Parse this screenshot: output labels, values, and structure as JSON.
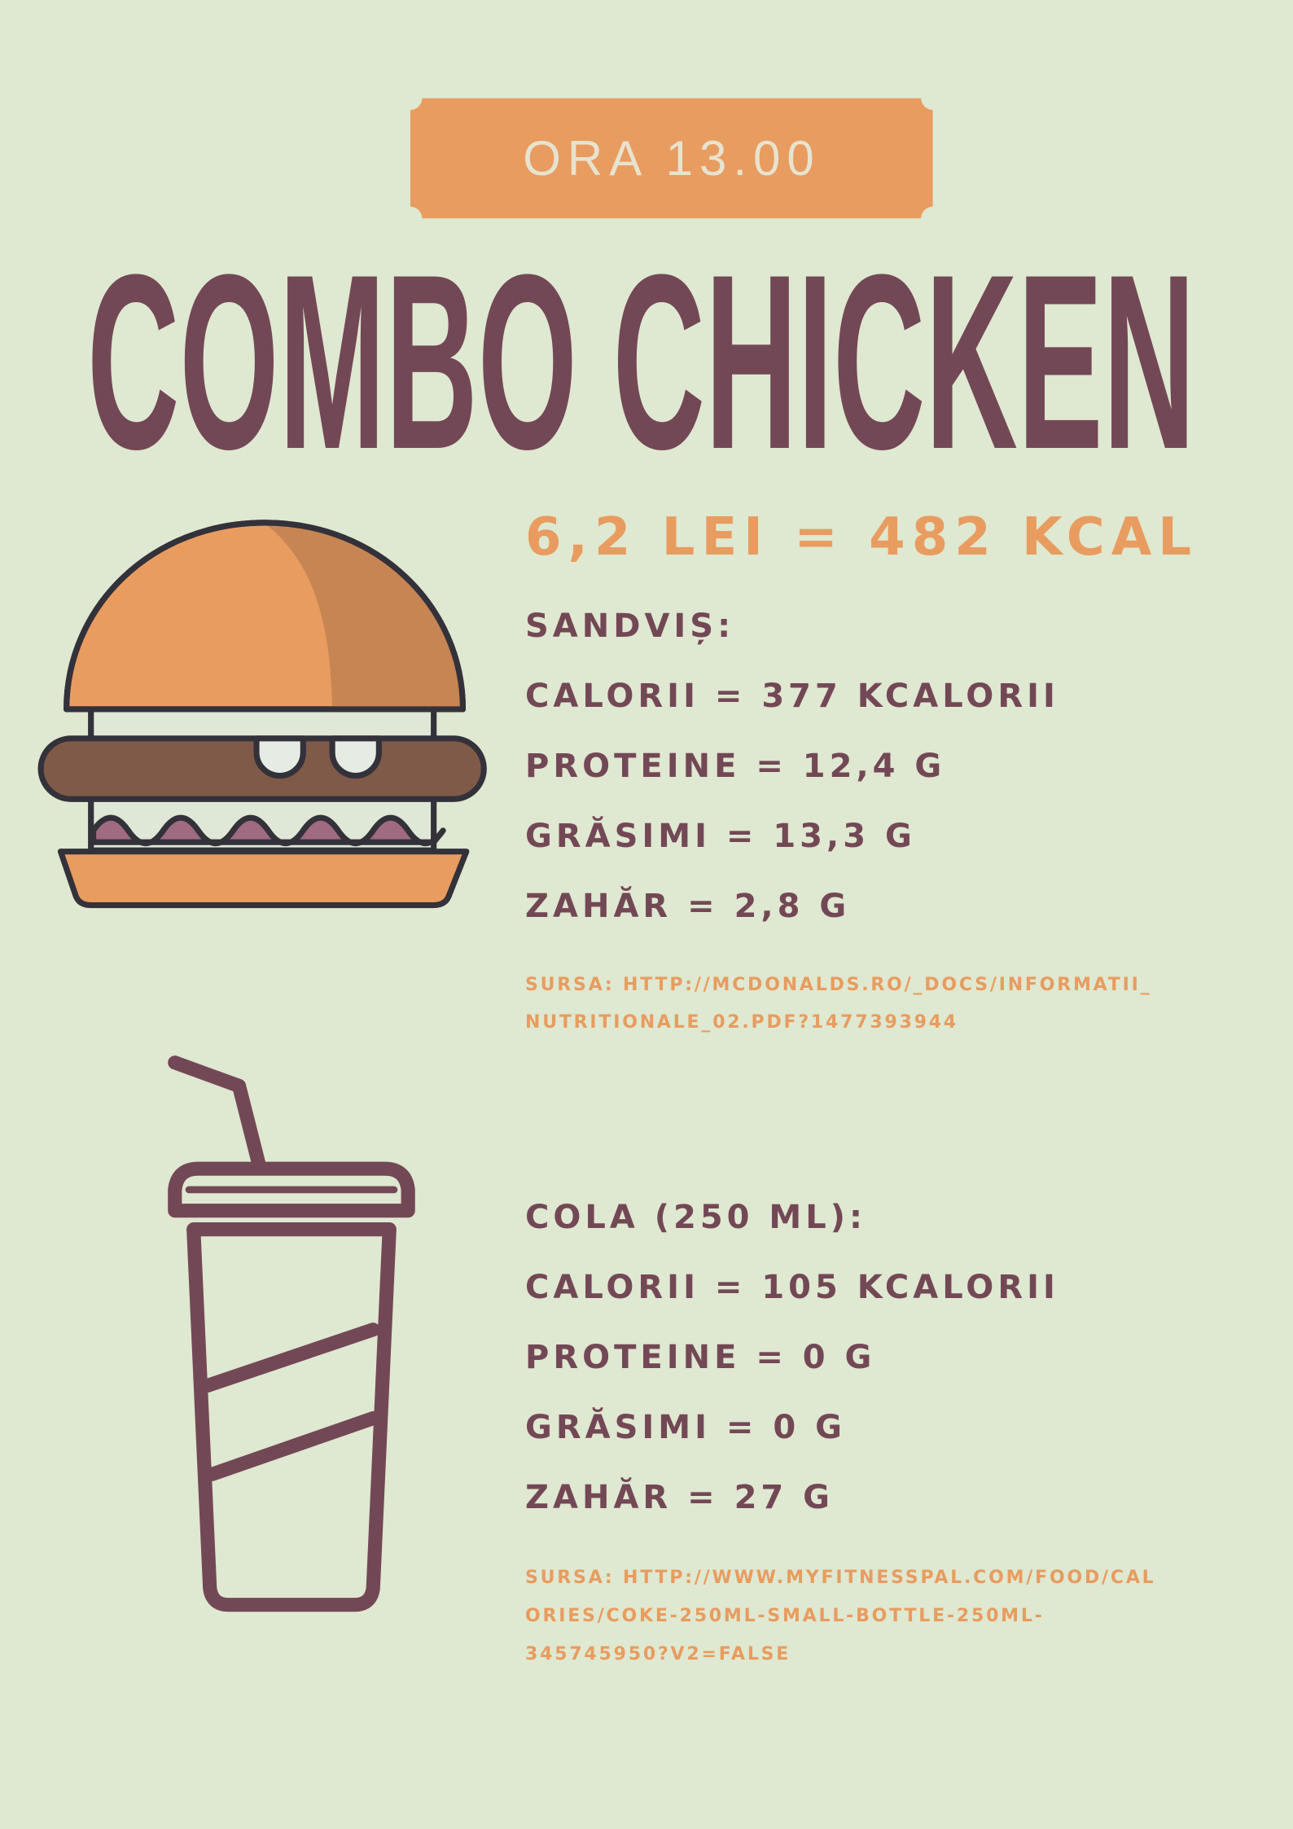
{
  "colors": {
    "background": "#dfe8d0",
    "accent": "#e89c5f",
    "primary": "#734856"
  },
  "badge": {
    "label": "ORA 13.00"
  },
  "title": "COMBO CHICKEN",
  "price": "6,2 LEI = 482 KCAL",
  "sandwich": {
    "icon": "burger-icon",
    "heading": "SANDVIȘ:",
    "calories": "CALORII = 377 KCALORII",
    "protein": "PROTEINE = 12,4 G",
    "fat": "GRĂSIMI = 13,3 G",
    "sugar": "ZAHĂR = 2,8 G",
    "source": [
      "SURSA: HTTP://MCDONALDS.RO/_DOCS/INFORMATII_",
      "NUTRITIONALE_02.PDF?1477393944"
    ]
  },
  "drink": {
    "icon": "drink-cup-icon",
    "heading": "COLA (250 ML):",
    "calories": "CALORII = 105 KCALORII",
    "protein": "PROTEINE = 0 G",
    "fat": "GRĂSIMI = 0 G",
    "sugar": "ZAHĂR = 27 G",
    "source": [
      "SURSA: HTTP://WWW.MYFITNESSPAL.COM/FOOD/CAL",
      "ORIES/COKE-250ML-SMALL-BOTTLE-250ML-",
      "345745950?V2=FALSE"
    ]
  }
}
